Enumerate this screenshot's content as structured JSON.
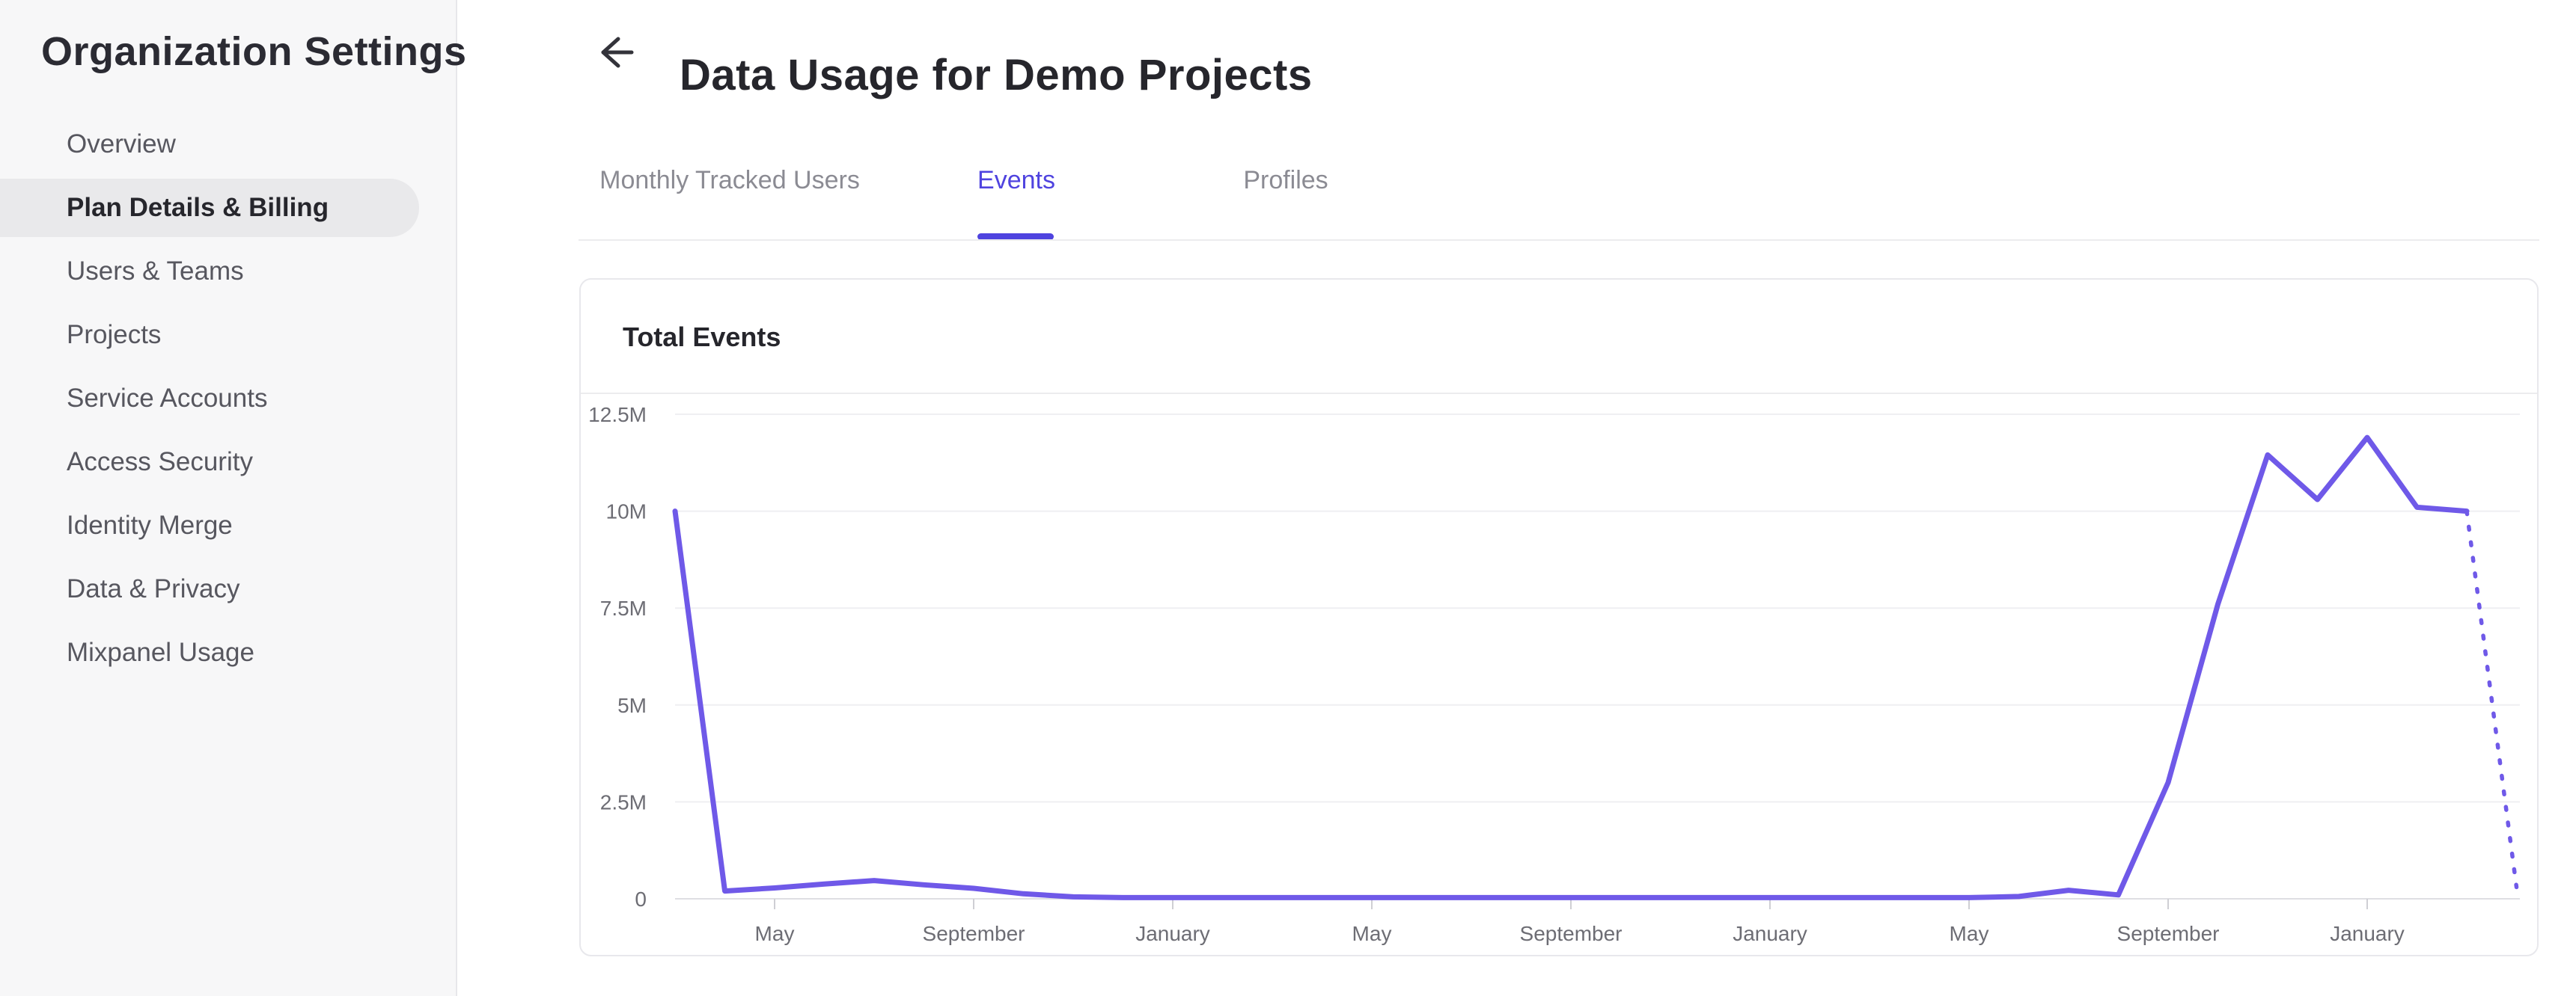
{
  "sidebar": {
    "title": "Organization Settings",
    "items": [
      {
        "label": "Overview",
        "selected": false
      },
      {
        "label": "Plan Details & Billing",
        "selected": true
      },
      {
        "label": "Users & Teams",
        "selected": false
      },
      {
        "label": "Projects",
        "selected": false
      },
      {
        "label": "Service Accounts",
        "selected": false
      },
      {
        "label": "Access Security",
        "selected": false
      },
      {
        "label": "Identity Merge",
        "selected": false
      },
      {
        "label": "Data & Privacy",
        "selected": false
      },
      {
        "label": "Mixpanel Usage",
        "selected": false
      }
    ]
  },
  "header": {
    "back_icon": "arrow-left",
    "title": "Data Usage for Demo Projects"
  },
  "tabs": [
    {
      "label": "Monthly Tracked Users",
      "active": false
    },
    {
      "label": "Events",
      "active": true
    },
    {
      "label": "Profiles",
      "active": false
    }
  ],
  "card": {
    "title": "Total Events"
  },
  "colors": {
    "accent_purple": "#4f43df",
    "chart_line_purple": "#6f59e8",
    "sidebar_bg": "#f7f7f8",
    "selected_pill_bg": "#e9e9eb",
    "text_dark": "#26262c",
    "text_gray": "#57575f",
    "axis_label_gray": "#6d6d74",
    "gridline": "#efeff2",
    "axis_line": "#dfdfe3"
  },
  "chart_data": {
    "type": "line",
    "title": "Total Events",
    "xlabel": "",
    "ylabel": "",
    "ylim_millions": [
      0,
      12.5
    ],
    "grid": true,
    "legend_position": "none",
    "y_tick_labels": [
      "0",
      "2.5M",
      "5M",
      "7.5M",
      "10M",
      "12.5M"
    ],
    "x_tick_labels": [
      "May",
      "September",
      "January",
      "May",
      "September",
      "January",
      "May",
      "September",
      "January"
    ],
    "x_tick_month_indices": [
      2,
      6,
      10,
      14,
      18,
      22,
      26,
      30,
      34
    ],
    "series": [
      {
        "name": "Total Events",
        "unit": "millions",
        "monthly_values_millions": [
          10,
          0.2,
          0.28,
          0.38,
          0.47,
          0.36,
          0.27,
          0.13,
          0.05,
          0.03,
          0.03,
          0.03,
          0.03,
          0.03,
          0.03,
          0.03,
          0.03,
          0.03,
          0.03,
          0.03,
          0.03,
          0.03,
          0.03,
          0.03,
          0.03,
          0.03,
          0.03,
          0.06,
          0.22,
          0.1,
          3.0,
          7.6,
          11.45,
          10.3,
          11.9,
          10.1,
          10.0,
          0.3
        ],
        "dotted_projection_from_index": 36
      }
    ]
  }
}
